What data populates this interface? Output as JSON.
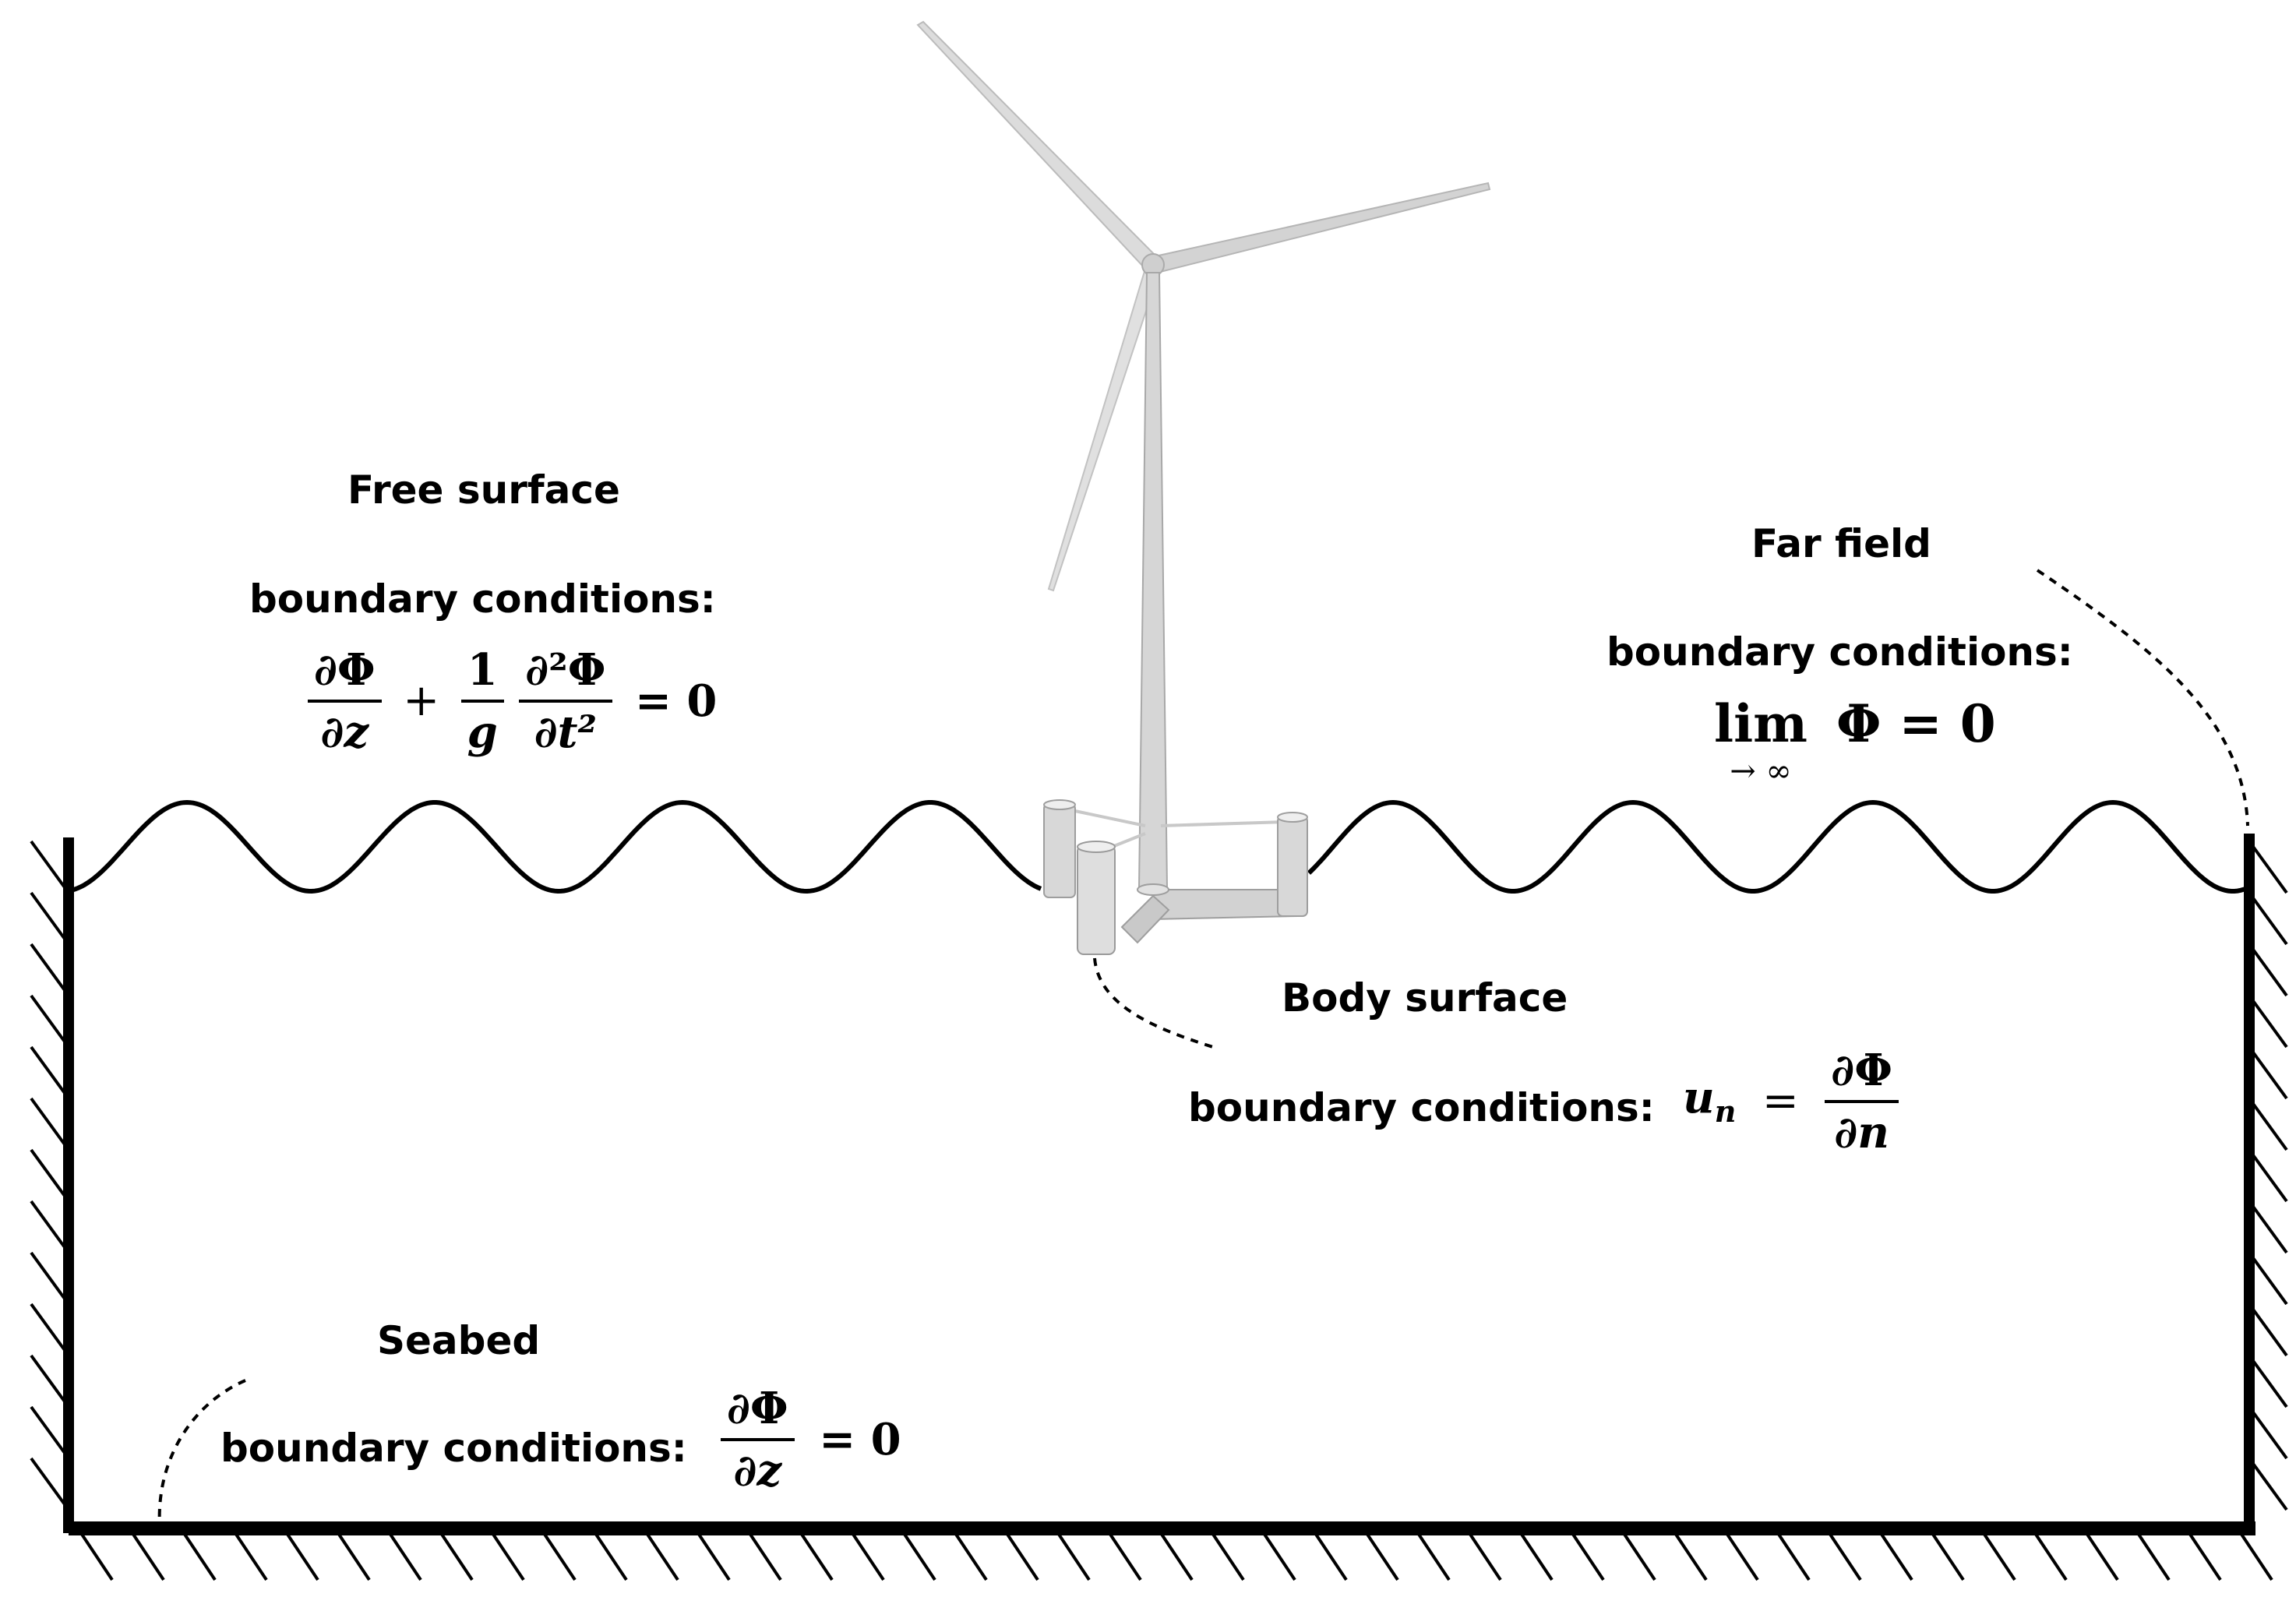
{
  "labels": {
    "free_surface_title": "Free surface",
    "free_surface_bc": "boundary conditions:",
    "far_field_title": "Far field",
    "far_field_bc": "boundary conditions:",
    "body_surface_title": "Body surface",
    "body_surface_bc": "boundary conditions:",
    "seabed_title": "Seabed",
    "seabed_bc": "boundary conditions:"
  },
  "equations": {
    "free_surface": {
      "frac1_num": "∂Φ",
      "frac1_den": "∂z",
      "plus": "+",
      "frac2_num": "1",
      "frac2_den": "g",
      "frac3_num": "∂²Φ",
      "frac3_den": "∂t²",
      "rhs": "= 0"
    },
    "far_field": {
      "lim": "lim",
      "lim_sub": "→ ∞",
      "body": "Φ = 0"
    },
    "body_surface": {
      "lhs": "u",
      "lhs_sub": "n",
      "equals": "=",
      "frac_num": "∂Φ",
      "frac_den": "∂n"
    },
    "seabed": {
      "frac_num": "∂Φ",
      "frac_den": "∂z",
      "rhs": "= 0"
    }
  },
  "colors": {
    "line": "#000000",
    "turbine": "#d6d6d6",
    "turbine_shade": "#b5b5b5"
  }
}
